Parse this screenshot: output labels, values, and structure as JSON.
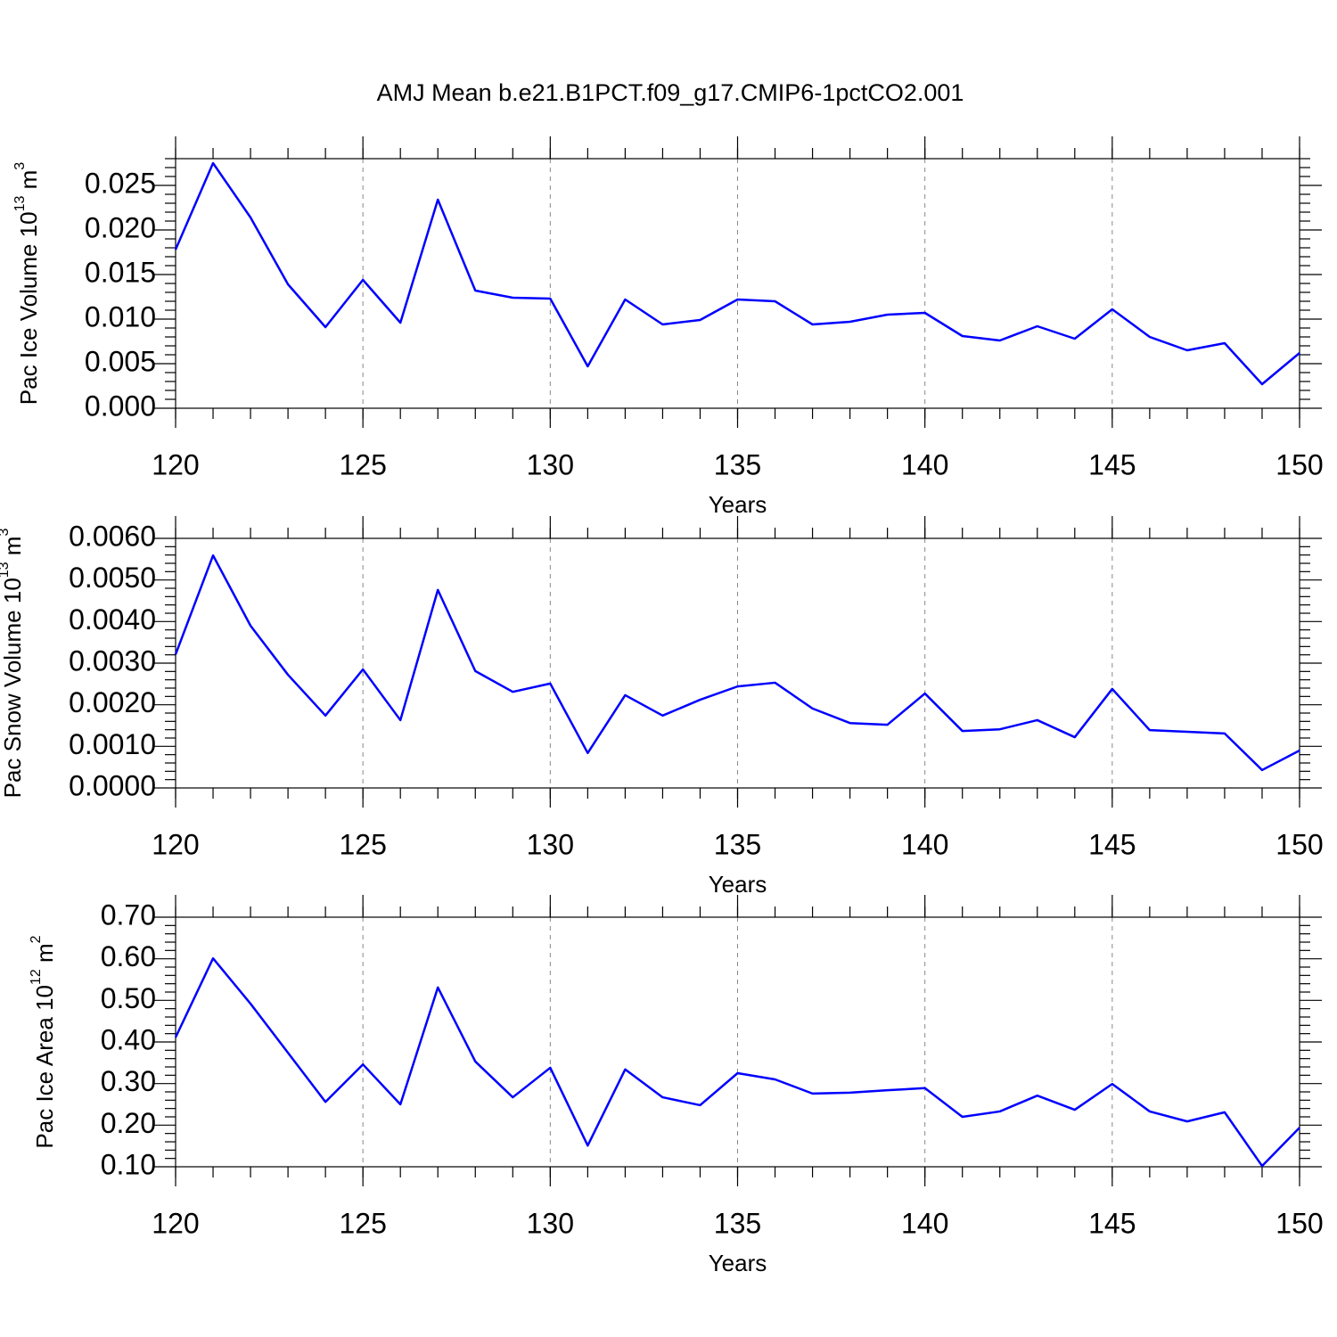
{
  "title": "AMJ Mean b.e21.B1PCT.f09_g17.CMIP6-1pctCO2.001",
  "chart_data": [
    {
      "type": "line",
      "ylabel": {
        "text": "Pac Ice Volume 10",
        "exponent": "13",
        "unit": " m",
        "unit_exponent": "3"
      },
      "xlabel": "Years",
      "x": [
        120,
        121,
        122,
        123,
        124,
        125,
        126,
        127,
        128,
        129,
        130,
        131,
        132,
        133,
        134,
        135,
        136,
        137,
        138,
        139,
        140,
        141,
        142,
        143,
        144,
        145,
        146,
        147,
        148,
        149,
        150
      ],
      "series": [
        {
          "color": "#0000ff",
          "values": [
            0.0178,
            0.0275,
            0.0214,
            0.0139,
            0.0091,
            0.0144,
            0.0096,
            0.0234,
            0.0132,
            0.0124,
            0.0123,
            0.0047,
            0.0122,
            0.0094,
            0.0099,
            0.0122,
            0.012,
            0.0094,
            0.0097,
            0.0105,
            0.0107,
            0.0081,
            0.0076,
            0.0092,
            0.0078,
            0.0111,
            0.008,
            0.0065,
            0.0073,
            0.0027,
            0.0062
          ]
        }
      ],
      "xlim": [
        120,
        150
      ],
      "xticks": [
        120,
        125,
        130,
        135,
        140,
        145,
        150
      ],
      "ylim": [
        0,
        0.028
      ],
      "yticks": [
        {
          "value": 0,
          "label": "0.000"
        },
        0.005,
        {
          "value": 0.01,
          "label": "0.010"
        },
        0.015,
        {
          "value": 0.02,
          "label": "0.020"
        },
        0.025
      ],
      "xgrid": true
    },
    {
      "type": "line",
      "ylabel": {
        "text": "Pac Snow Volume 10",
        "exponent": "13",
        "unit": " m",
        "unit_exponent": "3"
      },
      "xlabel": "Years",
      "x": [
        120,
        121,
        122,
        123,
        124,
        125,
        126,
        127,
        128,
        129,
        130,
        131,
        132,
        133,
        134,
        135,
        136,
        137,
        138,
        139,
        140,
        141,
        142,
        143,
        144,
        145,
        146,
        147,
        148,
        149,
        150
      ],
      "series": [
        {
          "color": "#0000ff",
          "values": [
            0.00321,
            0.00559,
            0.0039,
            0.00272,
            0.00174,
            0.00285,
            0.00163,
            0.00476,
            0.00281,
            0.00231,
            0.00251,
            0.00084,
            0.00223,
            0.00174,
            0.00212,
            0.00244,
            0.00253,
            0.00191,
            0.00156,
            0.00152,
            0.00227,
            0.00137,
            0.00141,
            0.00163,
            0.00122,
            0.00238,
            0.00139,
            0.00135,
            0.00131,
            0.00043,
            0.0009
          ]
        }
      ],
      "xlim": [
        120,
        150
      ],
      "xticks": [
        120,
        125,
        130,
        135,
        140,
        145,
        150
      ],
      "ylim": [
        0,
        0.006
      ],
      "yticks": [
        {
          "value": 0,
          "label": "0.0000"
        },
        {
          "value": 0.001,
          "label": "0.0010"
        },
        {
          "value": 0.002,
          "label": "0.0020"
        },
        {
          "value": 0.003,
          "label": "0.0030"
        },
        {
          "value": 0.004,
          "label": "0.0040"
        },
        {
          "value": 0.005,
          "label": "0.0050"
        },
        {
          "value": 0.006,
          "label": "0.0060"
        }
      ],
      "xgrid": true
    },
    {
      "type": "line",
      "ylabel": {
        "text": "Pac Ice Area 10",
        "exponent": "12",
        "unit": " m",
        "unit_exponent": "2"
      },
      "xlabel": "Years",
      "x": [
        120,
        121,
        122,
        123,
        124,
        125,
        126,
        127,
        128,
        129,
        130,
        131,
        132,
        133,
        134,
        135,
        136,
        137,
        138,
        139,
        140,
        141,
        142,
        143,
        144,
        145,
        146,
        147,
        148,
        149,
        150
      ],
      "series": [
        {
          "color": "#0000ff",
          "values": [
            0.411,
            0.601,
            0.492,
            0.374,
            0.256,
            0.346,
            0.25,
            0.531,
            0.353,
            0.267,
            0.338,
            0.151,
            0.334,
            0.267,
            0.248,
            0.325,
            0.31,
            0.276,
            0.278,
            0.284,
            0.289,
            0.22,
            0.233,
            0.271,
            0.237,
            0.299,
            0.233,
            0.209,
            0.231,
            0.102,
            0.194
          ]
        }
      ],
      "xlim": [
        120,
        150
      ],
      "xticks": [
        120,
        125,
        130,
        135,
        140,
        145,
        150
      ],
      "ylim": [
        0.1,
        0.7
      ],
      "yticks": [
        {
          "value": 0.1,
          "label": "0.10"
        },
        {
          "value": 0.2,
          "label": "0.20"
        },
        {
          "value": 0.3,
          "label": "0.30"
        },
        {
          "value": 0.4,
          "label": "0.40"
        },
        {
          "value": 0.5,
          "label": "0.50"
        },
        {
          "value": 0.6,
          "label": "0.60"
        },
        {
          "value": 0.7,
          "label": "0.70"
        }
      ],
      "xgrid": true
    }
  ]
}
